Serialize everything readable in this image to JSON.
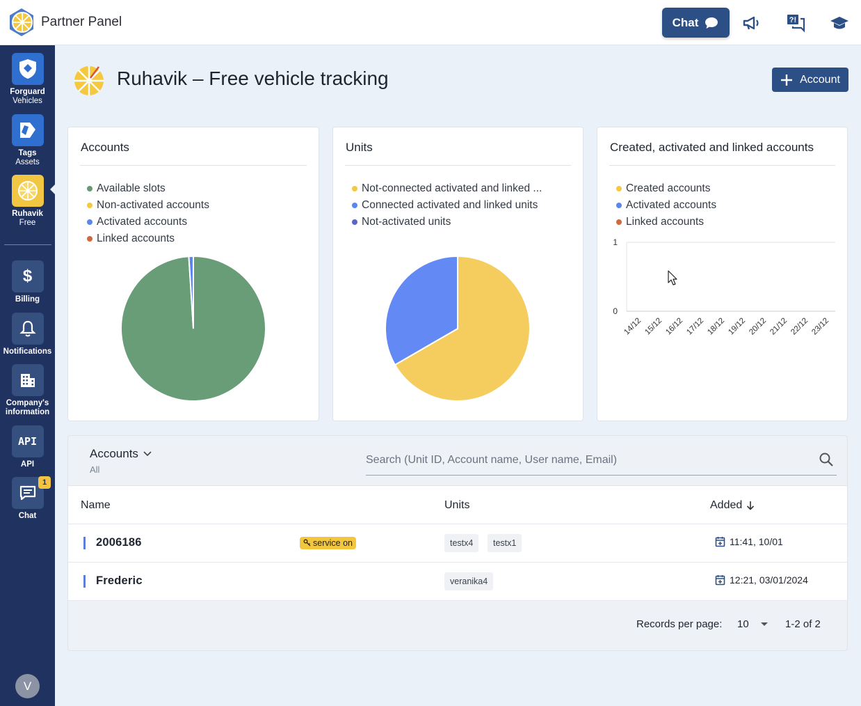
{
  "app": {
    "title": "Partner Panel",
    "chat_label": "Chat"
  },
  "sidebar": {
    "items": [
      {
        "line1": "Forguard",
        "line2": "Vehicles"
      },
      {
        "line1": "Tags",
        "line2": "Assets"
      },
      {
        "line1": "Ruhavik",
        "line2": "Free"
      },
      {
        "line1": "Billing",
        "line2": ""
      },
      {
        "line1": "Notifications",
        "line2": ""
      },
      {
        "line1": "Company's",
        "line2": "information"
      },
      {
        "line1": "API",
        "line2": ""
      },
      {
        "line1": "Chat",
        "line2": ""
      }
    ],
    "chat_badge": "1",
    "avatar_letter": "V"
  },
  "header": {
    "title": "Ruhavik – Free vehicle tracking",
    "add_button": "Account"
  },
  "cards": {
    "accounts": {
      "title": "Accounts",
      "legend": [
        {
          "label": "Available slots",
          "color": "#679a72"
        },
        {
          "label": "Non-activated accounts",
          "color": "#f5c842"
        },
        {
          "label": "Activated accounts",
          "color": "#5b86f0"
        },
        {
          "label": "Linked accounts",
          "color": "#d2693e"
        }
      ]
    },
    "units": {
      "title": "Units",
      "legend": [
        {
          "label": "Not-connected activated and linked ...",
          "color": "#f5c842"
        },
        {
          "label": "Connected activated and linked units",
          "color": "#5b86f0"
        },
        {
          "label": "Not-activated units",
          "color": "#5a66c9"
        }
      ]
    },
    "created": {
      "title": "Created, activated and linked accounts",
      "legend": [
        {
          "label": "Created accounts",
          "color": "#f5c842"
        },
        {
          "label": "Activated accounts",
          "color": "#5b86f0"
        },
        {
          "label": "Linked accounts",
          "color": "#d2693e"
        }
      ]
    }
  },
  "chart_data": [
    {
      "type": "pie",
      "labels": [
        "Available slots",
        "Non-activated accounts",
        "Activated accounts",
        "Linked accounts"
      ],
      "values": [
        99,
        0,
        1,
        0
      ],
      "colors": [
        "#699d77",
        "#f5c842",
        "#5b86f0",
        "#d2693e"
      ]
    },
    {
      "type": "pie",
      "labels": [
        "Not-connected activated and linked ...",
        "Connected activated and linked units",
        "Not-activated units"
      ],
      "values": [
        2,
        1,
        0
      ],
      "colors": [
        "#f5cc5e",
        "#6289f4",
        "#5a66c9"
      ]
    },
    {
      "type": "line",
      "categories": [
        "14/12",
        "15/12",
        "16/12",
        "17/12",
        "18/12",
        "19/12",
        "20/12",
        "21/12",
        "22/12",
        "23/12"
      ],
      "series": [
        {
          "name": "Created accounts",
          "values": [
            0,
            0,
            0,
            0,
            0,
            0,
            0,
            0,
            0,
            0
          ]
        },
        {
          "name": "Activated accounts",
          "values": [
            0,
            0,
            0,
            0,
            0,
            0,
            0,
            0,
            0,
            0
          ]
        },
        {
          "name": "Linked accounts",
          "values": [
            0,
            0,
            0,
            0,
            0,
            0,
            0,
            0,
            0,
            0
          ]
        }
      ],
      "yticks": [
        "1",
        "0"
      ],
      "ylim": [
        0,
        1
      ]
    }
  ],
  "table": {
    "filter_label": "Accounts",
    "filter_sub": "All",
    "search_placeholder": "Search (Unit ID, Account name, User name, Email)",
    "columns": {
      "name": "Name",
      "units": "Units",
      "added": "Added"
    },
    "rows": [
      {
        "name": "2006186",
        "badge": "service on",
        "units": [
          "testx4",
          "testx1"
        ],
        "added": "11:41, 10/01"
      },
      {
        "name": "Frederic",
        "badge": "",
        "units": [
          "veranika4"
        ],
        "added": "12:21, 03/01/2024"
      }
    ],
    "pager": {
      "label": "Records per page:",
      "per_page": "10",
      "range": "1-2 of 2"
    }
  }
}
